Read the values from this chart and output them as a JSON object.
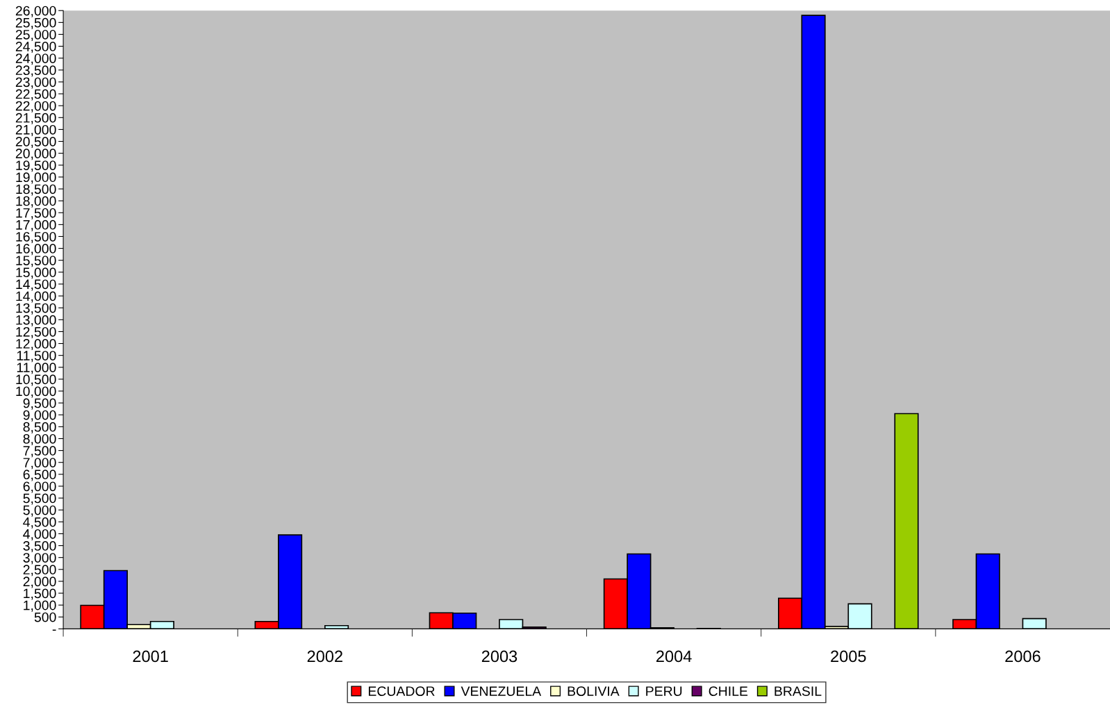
{
  "chart_data": {
    "type": "bar",
    "categories": [
      "2001",
      "2002",
      "2003",
      "2004",
      "2005",
      "2006"
    ],
    "series": [
      {
        "name": "ECUADOR",
        "color": "#ff0000",
        "values": [
          990,
          310,
          675,
          2100,
          1290,
          390
        ]
      },
      {
        "name": "VENEZUELA",
        "color": "#0000ff",
        "values": [
          2450,
          3950,
          660,
          3150,
          25800,
          3150
        ]
      },
      {
        "name": "BOLIVIA",
        "color": "#ffffcc",
        "values": [
          180,
          null,
          null,
          45,
          100,
          null
        ]
      },
      {
        "name": "PERU",
        "color": "#ccffff",
        "values": [
          310,
          135,
          390,
          null,
          1050,
          430
        ]
      },
      {
        "name": "CHILE",
        "color": "#660066",
        "values": [
          null,
          null,
          75,
          15,
          null,
          null
        ]
      },
      {
        "name": "BRASIL",
        "color": "#99cc00",
        "values": [
          null,
          null,
          null,
          null,
          9050,
          null
        ]
      }
    ],
    "ylim": [
      0,
      26000
    ],
    "yticks": [
      {
        "value": 0,
        "label": "-"
      },
      {
        "value": 500,
        "label": "500"
      },
      {
        "value": 1000,
        "label": "1,000"
      },
      {
        "value": 1500,
        "label": "1,500"
      },
      {
        "value": 2000,
        "label": "2,000"
      },
      {
        "value": 2500,
        "label": "2,500"
      },
      {
        "value": 3000,
        "label": "3,000"
      },
      {
        "value": 3500,
        "label": "3,500"
      },
      {
        "value": 4000,
        "label": "4,000"
      },
      {
        "value": 4500,
        "label": "4,500"
      },
      {
        "value": 5000,
        "label": "5,000"
      },
      {
        "value": 5500,
        "label": "5,500"
      },
      {
        "value": 6000,
        "label": "6,000"
      },
      {
        "value": 6500,
        "label": "6,500"
      },
      {
        "value": 7000,
        "label": "7,000"
      },
      {
        "value": 7500,
        "label": "7,500"
      },
      {
        "value": 8000,
        "label": "8,000"
      },
      {
        "value": 8500,
        "label": "8,500"
      },
      {
        "value": 9000,
        "label": "9,000"
      },
      {
        "value": 9500,
        "label": "9,500"
      },
      {
        "value": 10000,
        "label": "10,000"
      },
      {
        "value": 10500,
        "label": "10,500"
      },
      {
        "value": 11000,
        "label": "11,000"
      },
      {
        "value": 11500,
        "label": "11,500"
      },
      {
        "value": 12000,
        "label": "12,000"
      },
      {
        "value": 12500,
        "label": "12,500"
      },
      {
        "value": 13000,
        "label": "13,000"
      },
      {
        "value": 13500,
        "label": "13,500"
      },
      {
        "value": 14000,
        "label": "14,000"
      },
      {
        "value": 14500,
        "label": "14,500"
      },
      {
        "value": 15000,
        "label": "15,000"
      },
      {
        "value": 15500,
        "label": "15,500"
      },
      {
        "value": 16000,
        "label": "16,000"
      },
      {
        "value": 16500,
        "label": "16,500"
      },
      {
        "value": 17000,
        "label": "17,000"
      },
      {
        "value": 17500,
        "label": "17,500"
      },
      {
        "value": 18000,
        "label": "18,000"
      },
      {
        "value": 18500,
        "label": "18,500"
      },
      {
        "value": 19000,
        "label": "19,000"
      },
      {
        "value": 19500,
        "label": "19,500"
      },
      {
        "value": 20000,
        "label": "20,000"
      },
      {
        "value": 20500,
        "label": "20,500"
      },
      {
        "value": 21000,
        "label": "21,000"
      },
      {
        "value": 21500,
        "label": "21,500"
      },
      {
        "value": 22000,
        "label": "22,000"
      },
      {
        "value": 22500,
        "label": "22,500"
      },
      {
        "value": 23000,
        "label": "23,000"
      },
      {
        "value": 23500,
        "label": "23,500"
      },
      {
        "value": 24000,
        "label": "24,000"
      },
      {
        "value": 24500,
        "label": "24,500"
      },
      {
        "value": 25000,
        "label": "25,000"
      },
      {
        "value": 25500,
        "label": "25,500"
      },
      {
        "value": 26000,
        "label": "26,000"
      }
    ],
    "grid": false,
    "legend": "bottom"
  }
}
